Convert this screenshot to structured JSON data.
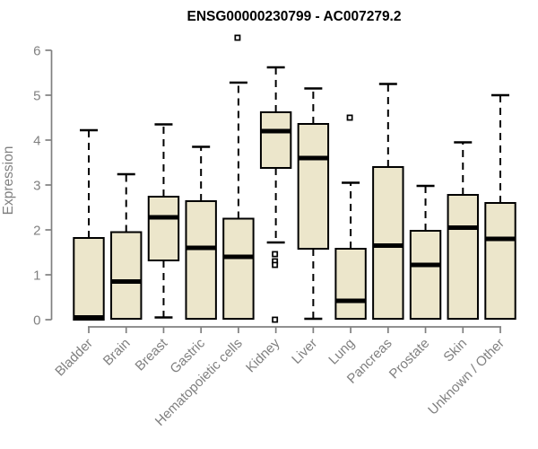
{
  "chart_data": {
    "type": "boxplot",
    "title": "ENSG00000230799 - AC007279.2",
    "xlabel": "",
    "ylabel": "Expression",
    "ylim": [
      0,
      6
    ],
    "yticks": [
      0,
      1,
      2,
      3,
      4,
      5,
      6
    ],
    "grid": false,
    "legend": false,
    "categories": [
      "Bladder",
      "Brain",
      "Breast",
      "Gastric",
      "Hematopoietic cells",
      "Kidney",
      "Liver",
      "Lung",
      "Pancreas",
      "Prostate",
      "Skin",
      "Unknown / Other"
    ],
    "series": [
      {
        "category": "Bladder",
        "whisker_low": 0,
        "q1": 0,
        "median": 0.05,
        "q3": 1.82,
        "whisker_high": 4.22,
        "outliers": []
      },
      {
        "category": "Brain",
        "whisker_low": 0,
        "q1": 0.02,
        "median": 0.85,
        "q3": 1.95,
        "whisker_high": 3.24,
        "outliers": []
      },
      {
        "category": "Breast",
        "whisker_low": 0.05,
        "q1": 1.32,
        "median": 2.28,
        "q3": 2.74,
        "whisker_high": 4.35,
        "outliers": []
      },
      {
        "category": "Gastric",
        "whisker_low": 0,
        "q1": 0.02,
        "median": 1.6,
        "q3": 2.64,
        "whisker_high": 3.85,
        "outliers": []
      },
      {
        "category": "Hematopoietic cells",
        "whisker_low": 0,
        "q1": 0.02,
        "median": 1.4,
        "q3": 2.25,
        "whisker_high": 5.28,
        "outliers": [
          6.28
        ]
      },
      {
        "category": "Kidney",
        "whisker_low": 1.72,
        "q1": 3.38,
        "median": 4.2,
        "q3": 4.62,
        "whisker_high": 5.62,
        "outliers": [
          1.46,
          1.3,
          1.22,
          0
        ]
      },
      {
        "category": "Liver",
        "whisker_low": 0.02,
        "q1": 1.58,
        "median": 3.6,
        "q3": 4.36,
        "whisker_high": 5.15,
        "outliers": []
      },
      {
        "category": "Lung",
        "whisker_low": 0,
        "q1": 0.02,
        "median": 0.42,
        "q3": 1.58,
        "whisker_high": 3.05,
        "outliers": [
          4.5
        ]
      },
      {
        "category": "Pancreas",
        "whisker_low": 0,
        "q1": 0.02,
        "median": 1.65,
        "q3": 3.4,
        "whisker_high": 5.25,
        "outliers": []
      },
      {
        "category": "Prostate",
        "whisker_low": 0,
        "q1": 0.02,
        "median": 1.22,
        "q3": 1.98,
        "whisker_high": 2.98,
        "outliers": []
      },
      {
        "category": "Skin",
        "whisker_low": 0,
        "q1": 0.02,
        "median": 2.05,
        "q3": 2.78,
        "whisker_high": 3.95,
        "outliers": []
      },
      {
        "category": "Unknown / Other",
        "whisker_low": 0,
        "q1": 0.02,
        "median": 1.8,
        "q3": 2.6,
        "whisker_high": 5.0,
        "outliers": []
      }
    ],
    "colors": {
      "background": "#FFFFFF",
      "box_fill": "#ECE6CB",
      "box_border": "#000000",
      "median": "#000000",
      "whisker": "#000000",
      "outlier_stroke": "#000000",
      "outlier_fill": "#FFFFFF",
      "axis": "#808080",
      "tick_label": "#808080",
      "title": "#000000"
    }
  }
}
